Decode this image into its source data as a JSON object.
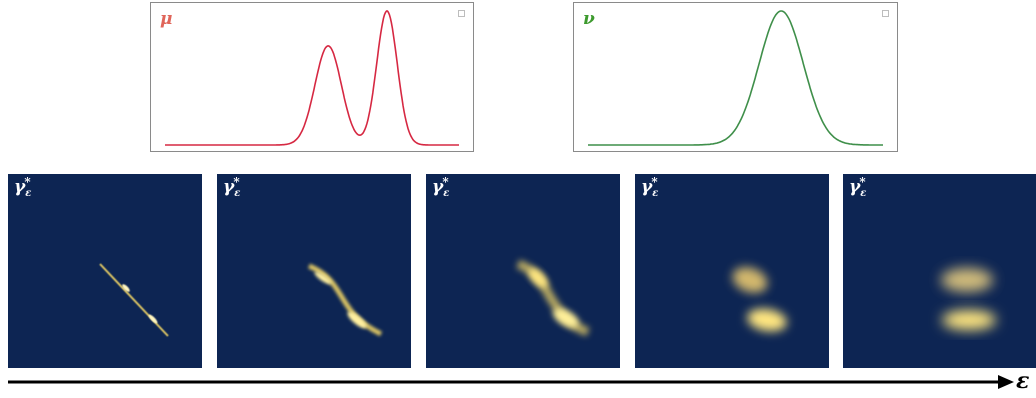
{
  "distributions": [
    {
      "id": "mu",
      "label": "μ",
      "color": "#d62842",
      "label_color": "#e0655a",
      "shape": "bimodal"
    },
    {
      "id": "nu",
      "label": "ν",
      "color": "#3f8f4a",
      "label_color": "#3d9a2e",
      "shape": "unimodal"
    }
  ],
  "panels": [
    {
      "label": "γ",
      "sub": "ε",
      "sup": "*",
      "epsilon_level": 1
    },
    {
      "label": "γ",
      "sub": "ε",
      "sup": "*",
      "epsilon_level": 2
    },
    {
      "label": "γ",
      "sub": "ε",
      "sup": "*",
      "epsilon_level": 3
    },
    {
      "label": "γ",
      "sub": "ε",
      "sup": "*",
      "epsilon_level": 4
    },
    {
      "label": "γ",
      "sub": "ε",
      "sup": "*",
      "epsilon_level": 5
    }
  ],
  "axis": {
    "label": "ε"
  },
  "colors": {
    "panel_bg": "#0d2553",
    "glow": "#ffe066"
  }
}
